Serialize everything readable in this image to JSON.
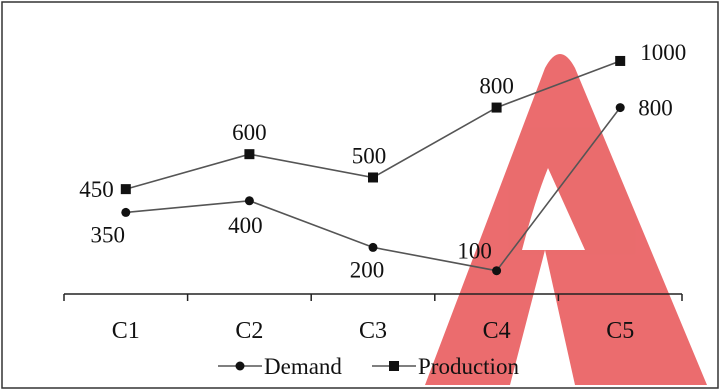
{
  "chart_data": {
    "type": "line",
    "categories": [
      "C1",
      "C2",
      "C3",
      "C4",
      "C5"
    ],
    "series": [
      {
        "name": "Demand",
        "values": [
          350,
          400,
          200,
          100,
          800
        ],
        "marker": "circle",
        "color": "#1a1a1a"
      },
      {
        "name": "Production",
        "values": [
          450,
          600,
          500,
          800,
          1000
        ],
        "marker": "square",
        "color": "#1a1a1a"
      }
    ],
    "title": "",
    "xlabel": "",
    "ylabel": "",
    "ylim": [
      0,
      1150
    ],
    "grid": false,
    "legend": "bottom",
    "colors": {
      "border": "#333333",
      "line": "#555555",
      "marker": "#111111",
      "watermark": "#e8585a"
    }
  }
}
